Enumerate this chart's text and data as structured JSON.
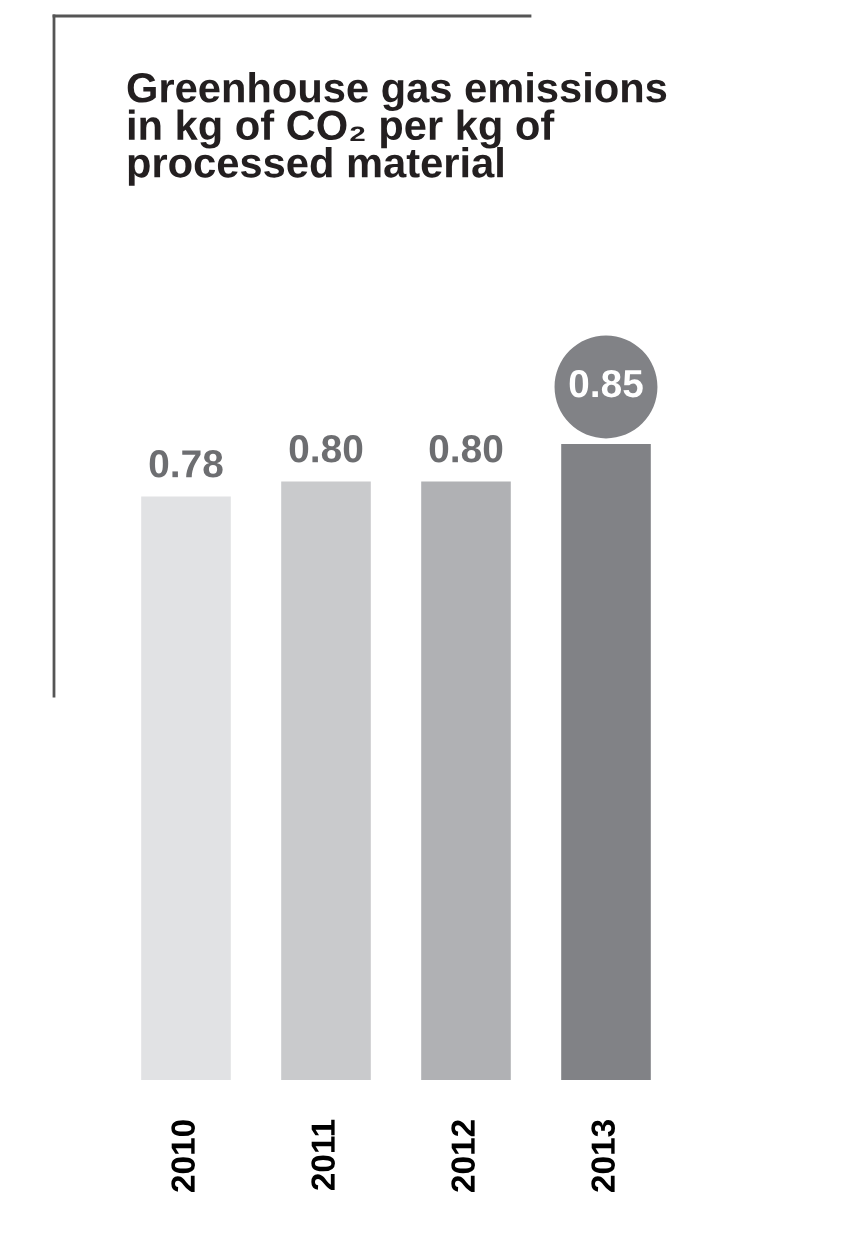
{
  "chart_data": {
    "type": "bar",
    "title": "Greenhouse gas emissions\nin kg of CO₂ per kg of\nprocessed material",
    "categories": [
      "2010",
      "2011",
      "2012",
      "2013"
    ],
    "values": [
      0.78,
      0.8,
      0.8,
      0.85
    ],
    "colors": [
      "#e1e2e4",
      "#c9cacc",
      "#b0b1b4",
      "#818286"
    ],
    "value_labels": [
      "0.78",
      "0.80",
      "0.80",
      "0.85"
    ],
    "tick_labels": "x",
    "grid": false,
    "legend": false
  }
}
